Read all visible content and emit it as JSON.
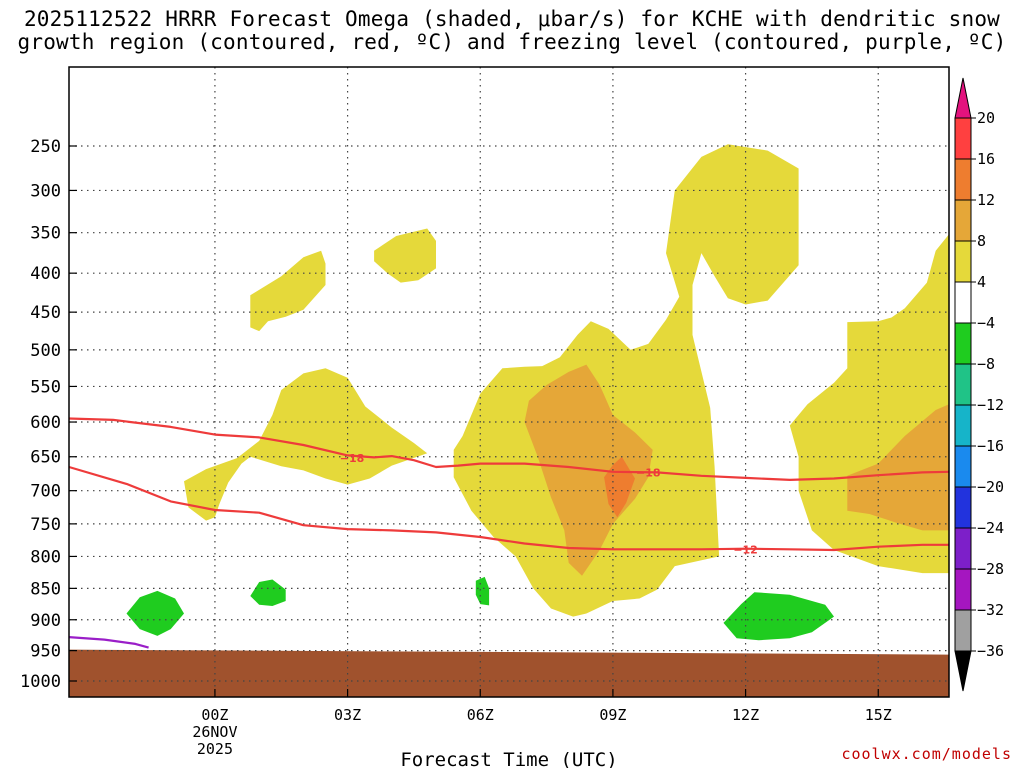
{
  "chart_data": {
    "type": "contour",
    "title_line1": "2025112522 HRRR Forecast Omega (shaded, μbar/s) for KCHE with dendritic snow",
    "title_line2": "growth region (contoured, red, ºC) and freezing level (contoured, purple, ºC)",
    "xlabel": "Forecast Time (UTC)",
    "credit": "coolwx.com/models",
    "y_axis": {
      "unit": "hPa",
      "range": [
        200,
        1050
      ],
      "ticks": [
        250,
        300,
        350,
        400,
        450,
        500,
        550,
        600,
        650,
        700,
        750,
        800,
        850,
        900,
        950,
        1000
      ]
    },
    "x_axis": {
      "unit": "hours after 26NOV 00Z",
      "range": [
        -3.3,
        16.6
      ],
      "ticks": [
        {
          "h": 0,
          "label": "00Z",
          "sub1": "26NOV",
          "sub2": "2025"
        },
        {
          "h": 3,
          "label": "03Z"
        },
        {
          "h": 6,
          "label": "06Z"
        },
        {
          "h": 9,
          "label": "09Z"
        },
        {
          "h": 12,
          "label": "12Z"
        },
        {
          "h": 15,
          "label": "15Z"
        }
      ]
    },
    "colorbar": {
      "levels": [
        "20",
        "16",
        "12",
        "8",
        "4",
        "−4",
        "−8",
        "−12",
        "−16",
        "−20",
        "−24",
        "−28",
        "−32",
        "−36"
      ],
      "colors": [
        "#ff4040",
        "#ee7d2f",
        "#e5a738",
        "#e5d93a",
        "#ffffff",
        "#1fcc1f",
        "#20c387",
        "#16b4c9",
        "#1a8aee",
        "#2233dd",
        "#7d1fc9",
        "#a516c0",
        "#a0a0a0"
      ],
      "top_arrow_color": "#e3137e",
      "bottom_arrow_color": "#000000"
    },
    "contours": [
      {
        "name": "dgz-top",
        "label": "−18",
        "color": "#ee3b3b",
        "points": [
          [
            -3.3,
            595
          ],
          [
            -2.3,
            597
          ],
          [
            -1,
            607
          ],
          [
            0,
            618
          ],
          [
            1,
            622
          ],
          [
            2,
            633
          ],
          [
            3,
            648
          ],
          [
            3.6,
            651
          ],
          [
            4,
            649
          ],
          [
            4.5,
            655
          ],
          [
            5,
            665
          ],
          [
            5.5,
            663
          ],
          [
            6,
            660
          ],
          [
            7,
            660
          ],
          [
            8,
            665
          ],
          [
            9,
            672
          ],
          [
            10,
            673
          ],
          [
            11,
            678
          ],
          [
            12,
            681
          ],
          [
            13,
            684
          ],
          [
            14,
            682
          ],
          [
            15,
            677
          ],
          [
            16,
            673
          ],
          [
            16.6,
            672
          ]
        ],
        "labels_at": [
          [
            3.1,
            652
          ],
          [
            9.8,
            673
          ]
        ]
      },
      {
        "name": "dgz-bottom",
        "label": "−12",
        "color": "#ee3b3b",
        "points": [
          [
            -3.3,
            665
          ],
          [
            -2,
            690
          ],
          [
            -1,
            716
          ],
          [
            0,
            729
          ],
          [
            1,
            733
          ],
          [
            2,
            752
          ],
          [
            3,
            758
          ],
          [
            4,
            760
          ],
          [
            5,
            763
          ],
          [
            6,
            770
          ],
          [
            7,
            780
          ],
          [
            8,
            787
          ],
          [
            9,
            789
          ],
          [
            10,
            789
          ],
          [
            11,
            789
          ],
          [
            12,
            788
          ],
          [
            13,
            789
          ],
          [
            14,
            790
          ],
          [
            15,
            785
          ],
          [
            16,
            782
          ],
          [
            16.6,
            782
          ]
        ],
        "labels_at": [
          [
            12.0,
            789
          ]
        ]
      },
      {
        "name": "freezing-level",
        "label": "",
        "color": "#9a1ec8",
        "points": [
          [
            -3.3,
            928
          ],
          [
            -2.5,
            932
          ],
          [
            -1.8,
            939
          ],
          [
            -1.5,
            945
          ]
        ],
        "labels_at": []
      }
    ],
    "terrain": {
      "color": "#a0522d",
      "surface_pressure_hPa": 950
    },
    "shaded_regions": [
      {
        "name": "omega-4-8-a",
        "band": "4 to 8",
        "color": "#e5d93a",
        "points": [
          [
            0.8,
            470
          ],
          [
            0.8,
            428
          ],
          [
            1.5,
            404
          ],
          [
            2.0,
            380
          ],
          [
            2.4,
            372
          ],
          [
            2.5,
            388
          ],
          [
            2.5,
            415
          ],
          [
            2.0,
            447
          ],
          [
            1.6,
            456
          ],
          [
            1.2,
            462
          ],
          [
            1.0,
            475
          ]
        ]
      },
      {
        "name": "omega-4-8-b",
        "band": "4 to 8",
        "color": "#e5d93a",
        "points": [
          [
            3.6,
            372
          ],
          [
            4.1,
            354
          ],
          [
            4.8,
            345
          ],
          [
            5.0,
            360
          ],
          [
            5.0,
            394
          ],
          [
            4.6,
            409
          ],
          [
            4.2,
            412
          ],
          [
            3.9,
            400
          ],
          [
            3.6,
            385
          ]
        ]
      },
      {
        "name": "omega-4-8-c",
        "band": "4 to 8",
        "color": "#e5d93a",
        "points": [
          [
            -0.2,
            745
          ],
          [
            -0.6,
            725
          ],
          [
            -0.7,
            686
          ],
          [
            -0.2,
            668
          ],
          [
            0.5,
            652
          ],
          [
            1.0,
            627
          ],
          [
            1.3,
            590
          ],
          [
            1.5,
            555
          ],
          [
            2.0,
            532
          ],
          [
            2.5,
            525
          ],
          [
            3.0,
            538
          ],
          [
            3.4,
            578
          ],
          [
            4.0,
            608
          ],
          [
            4.5,
            630
          ],
          [
            4.8,
            645
          ],
          [
            4.0,
            663
          ],
          [
            3.5,
            682
          ],
          [
            3.0,
            691
          ],
          [
            2.5,
            682
          ],
          [
            2.0,
            670
          ],
          [
            1.5,
            664
          ],
          [
            0.8,
            650
          ],
          [
            0.6,
            660
          ],
          [
            0.3,
            688
          ],
          [
            0.1,
            720
          ],
          [
            0.0,
            740
          ]
        ]
      },
      {
        "name": "omega-4-8-d",
        "band": "4 to 8",
        "color": "#e5d93a",
        "points": [
          [
            5.6,
            620
          ],
          [
            6.0,
            560
          ],
          [
            6.5,
            525
          ],
          [
            7.0,
            523
          ],
          [
            7.4,
            522
          ],
          [
            7.8,
            510
          ],
          [
            8.2,
            480
          ],
          [
            8.5,
            462
          ],
          [
            8.9,
            472
          ],
          [
            9.4,
            500
          ],
          [
            9.8,
            492
          ],
          [
            10.2,
            460
          ],
          [
            10.5,
            430
          ],
          [
            10.2,
            375
          ],
          [
            10.4,
            300
          ],
          [
            11.0,
            262
          ],
          [
            11.6,
            248
          ],
          [
            12.5,
            255
          ],
          [
            13.2,
            275
          ],
          [
            13.2,
            390
          ],
          [
            12.5,
            435
          ],
          [
            12.0,
            440
          ],
          [
            11.6,
            432
          ],
          [
            11.3,
            404
          ],
          [
            11.0,
            375
          ],
          [
            10.8,
            415
          ],
          [
            10.8,
            480
          ],
          [
            11.2,
            580
          ],
          [
            11.3,
            665
          ],
          [
            11.4,
            800
          ],
          [
            10.4,
            815
          ],
          [
            10.0,
            852
          ],
          [
            9.6,
            866
          ],
          [
            9.0,
            870
          ],
          [
            8.4,
            890
          ],
          [
            8.1,
            895
          ],
          [
            7.6,
            882
          ],
          [
            7.2,
            850
          ],
          [
            6.8,
            800
          ],
          [
            6.3,
            770
          ],
          [
            5.8,
            730
          ],
          [
            5.4,
            680
          ],
          [
            5.4,
            640
          ]
        ]
      },
      {
        "name": "omega-4-8-e",
        "band": "4 to 8",
        "color": "#e5d93a",
        "points": [
          [
            13.2,
            650
          ],
          [
            13.0,
            605
          ],
          [
            13.4,
            575
          ],
          [
            14.0,
            545
          ],
          [
            14.3,
            525
          ],
          [
            14.3,
            463
          ],
          [
            15.0,
            462
          ],
          [
            15.3,
            457
          ],
          [
            15.6,
            445
          ],
          [
            16.1,
            412
          ],
          [
            16.3,
            372
          ],
          [
            16.6,
            352
          ],
          [
            16.6,
            826
          ],
          [
            16.0,
            826
          ],
          [
            15.0,
            815
          ],
          [
            14.0,
            790
          ],
          [
            13.5,
            760
          ],
          [
            13.2,
            700
          ]
        ]
      },
      {
        "name": "omega-8-12-a",
        "band": "8 to 12",
        "color": "#e5a738",
        "points": [
          [
            7.0,
            600
          ],
          [
            7.1,
            570
          ],
          [
            7.5,
            548
          ],
          [
            8.0,
            530
          ],
          [
            8.4,
            520
          ],
          [
            8.7,
            548
          ],
          [
            9.0,
            590
          ],
          [
            9.5,
            615
          ],
          [
            9.9,
            640
          ],
          [
            9.8,
            680
          ],
          [
            9.5,
            712
          ],
          [
            9.0,
            750
          ],
          [
            8.7,
            790
          ],
          [
            8.3,
            830
          ],
          [
            8.0,
            810
          ],
          [
            7.9,
            760
          ],
          [
            7.6,
            710
          ],
          [
            7.3,
            650
          ]
        ]
      },
      {
        "name": "omega-8-12-b",
        "band": "8 to 12",
        "color": "#e5a738",
        "points": [
          [
            14.3,
            678
          ],
          [
            15.0,
            660
          ],
          [
            15.6,
            620
          ],
          [
            16.3,
            583
          ],
          [
            16.6,
            575
          ],
          [
            16.6,
            760
          ],
          [
            16.0,
            760
          ],
          [
            15.4,
            748
          ],
          [
            14.8,
            735
          ],
          [
            14.3,
            730
          ]
        ]
      },
      {
        "name": "omega-12-16",
        "band": "12 to 16",
        "color": "#ee7d2f",
        "points": [
          [
            8.8,
            680
          ],
          [
            9.0,
            662
          ],
          [
            9.2,
            650
          ],
          [
            9.5,
            682
          ],
          [
            9.3,
            718
          ],
          [
            9.1,
            740
          ],
          [
            8.9,
            720
          ]
        ]
      },
      {
        "name": "omega-neg4-8-a",
        "band": "-4 to -8",
        "color": "#1fcc1f",
        "points": [
          [
            -2.0,
            890
          ],
          [
            -1.7,
            864
          ],
          [
            -1.3,
            854
          ],
          [
            -0.9,
            866
          ],
          [
            -0.7,
            890
          ],
          [
            -1.0,
            915
          ],
          [
            -1.3,
            926
          ],
          [
            -1.7,
            915
          ]
        ]
      },
      {
        "name": "omega-neg4-8-b",
        "band": "-4 to -8",
        "color": "#1fcc1f",
        "points": [
          [
            0.8,
            862
          ],
          [
            1.0,
            840
          ],
          [
            1.3,
            836
          ],
          [
            1.6,
            852
          ],
          [
            1.6,
            870
          ],
          [
            1.3,
            878
          ],
          [
            1.0,
            876
          ]
        ]
      },
      {
        "name": "omega-neg4-8-c",
        "band": "-4 to -8",
        "color": "#1fcc1f",
        "points": [
          [
            5.9,
            860
          ],
          [
            5.9,
            838
          ],
          [
            6.1,
            832
          ],
          [
            6.2,
            850
          ],
          [
            6.2,
            877
          ],
          [
            6.0,
            875
          ]
        ]
      },
      {
        "name": "omega-neg4-8-d",
        "band": "-4 to -8",
        "color": "#1fcc1f",
        "points": [
          [
            11.5,
            905
          ],
          [
            11.9,
            875
          ],
          [
            12.2,
            856
          ],
          [
            13.0,
            860
          ],
          [
            13.8,
            876
          ],
          [
            14.0,
            895
          ],
          [
            13.5,
            920
          ],
          [
            13.0,
            930
          ],
          [
            12.3,
            933
          ],
          [
            11.8,
            930
          ]
        ]
      }
    ]
  }
}
